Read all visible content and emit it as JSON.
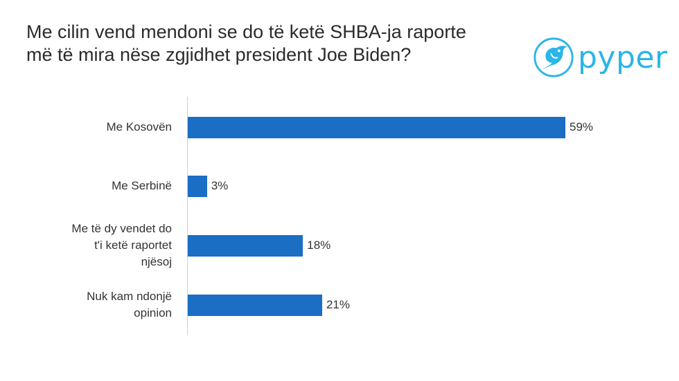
{
  "title": "Me cilin vend mendoni se do të ketë SHBA-ja raporte\nmë të mira nëse zgjidhet president Joe Biden?",
  "logo": {
    "text": "pyper",
    "icon": "bird-icon",
    "color": "#2bb5e8"
  },
  "chart_data": {
    "type": "bar",
    "orientation": "horizontal",
    "title": "Me cilin vend mendoni se do të ketë SHBA-ja raporte më të mira nëse zgjidhet president Joe Biden?",
    "categories": [
      "Me Kosovën",
      "Me Serbinë",
      "Me të dy vendet do\nt'i ketë raportet\nnjësoj",
      "Nuk kam ndonjë\nopinion"
    ],
    "values": [
      59,
      3,
      18,
      21
    ],
    "value_labels": [
      "59%",
      "3%",
      "18%",
      "21%"
    ],
    "unit": "%",
    "xlim": [
      0,
      60
    ],
    "grid": false,
    "legend": "none",
    "bar_color": "#1a6ec4"
  }
}
